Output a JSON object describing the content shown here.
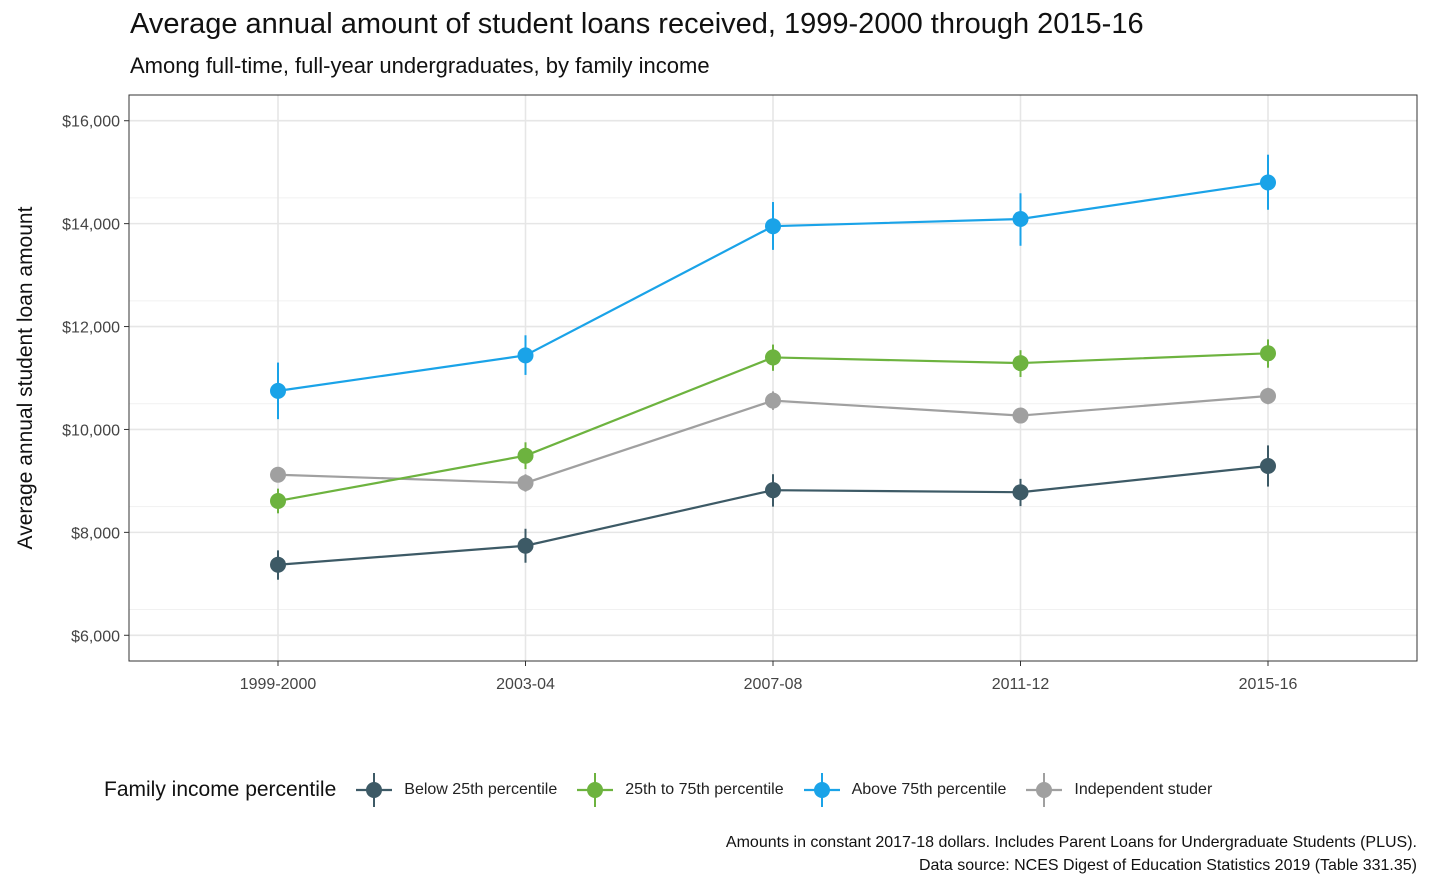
{
  "chart_data": {
    "type": "line",
    "title": "Average annual amount of student loans received, 1999-2000 through 2015-16",
    "subtitle": "Among full-time, full-year undergraduates, by family income",
    "ylabel": "Average annual student loan amount",
    "xlabel": "",
    "categories": [
      "1999-2000",
      "2003-04",
      "2007-08",
      "2011-12",
      "2015-16"
    ],
    "ylim": [
      5500,
      16500
    ],
    "yticks": [
      6000,
      8000,
      10000,
      12000,
      14000,
      16000
    ],
    "ytick_labels": [
      "$6,000",
      "$8,000",
      "$10,000",
      "$12,000",
      "$14,000",
      "$16,000"
    ],
    "grid": true,
    "legend": {
      "title": "Family income percentile",
      "position": "bottom"
    },
    "series": [
      {
        "name": "Below 25th percentile",
        "color": "#3d5a66",
        "values": [
          7370,
          7740,
          8820,
          8780,
          9290
        ],
        "error_low": [
          7080,
          7410,
          8500,
          8510,
          8890
        ],
        "error_high": [
          7650,
          8070,
          9130,
          9040,
          9690
        ]
      },
      {
        "name": "25th to 75th percentile",
        "color": "#6db33f",
        "values": [
          8610,
          9490,
          11400,
          11290,
          11480
        ],
        "error_low": [
          8370,
          9230,
          11140,
          11020,
          11200
        ],
        "error_high": [
          8850,
          9750,
          11650,
          11540,
          11750
        ]
      },
      {
        "name": "Above 75th percentile",
        "color": "#1aa3e8",
        "values": [
          10750,
          11440,
          13950,
          14090,
          14800
        ],
        "error_low": [
          10200,
          11060,
          13490,
          13570,
          14270
        ],
        "error_high": [
          11300,
          11830,
          14420,
          14590,
          15340
        ]
      },
      {
        "name": "Independent studer",
        "color": "#a0a0a0",
        "values": [
          9120,
          8960,
          10560,
          10270,
          10650
        ],
        "error_low": [
          8990,
          8790,
          10380,
          10130,
          10490
        ],
        "error_high": [
          9250,
          9130,
          10740,
          10410,
          10810
        ]
      }
    ],
    "caption_lines": [
      "Amounts in constant 2017-18 dollars. Includes Parent Loans for Undergraduate Students (PLUS).",
      "Data source: NCES Digest of Education Statistics 2019 (Table 331.35)"
    ]
  }
}
